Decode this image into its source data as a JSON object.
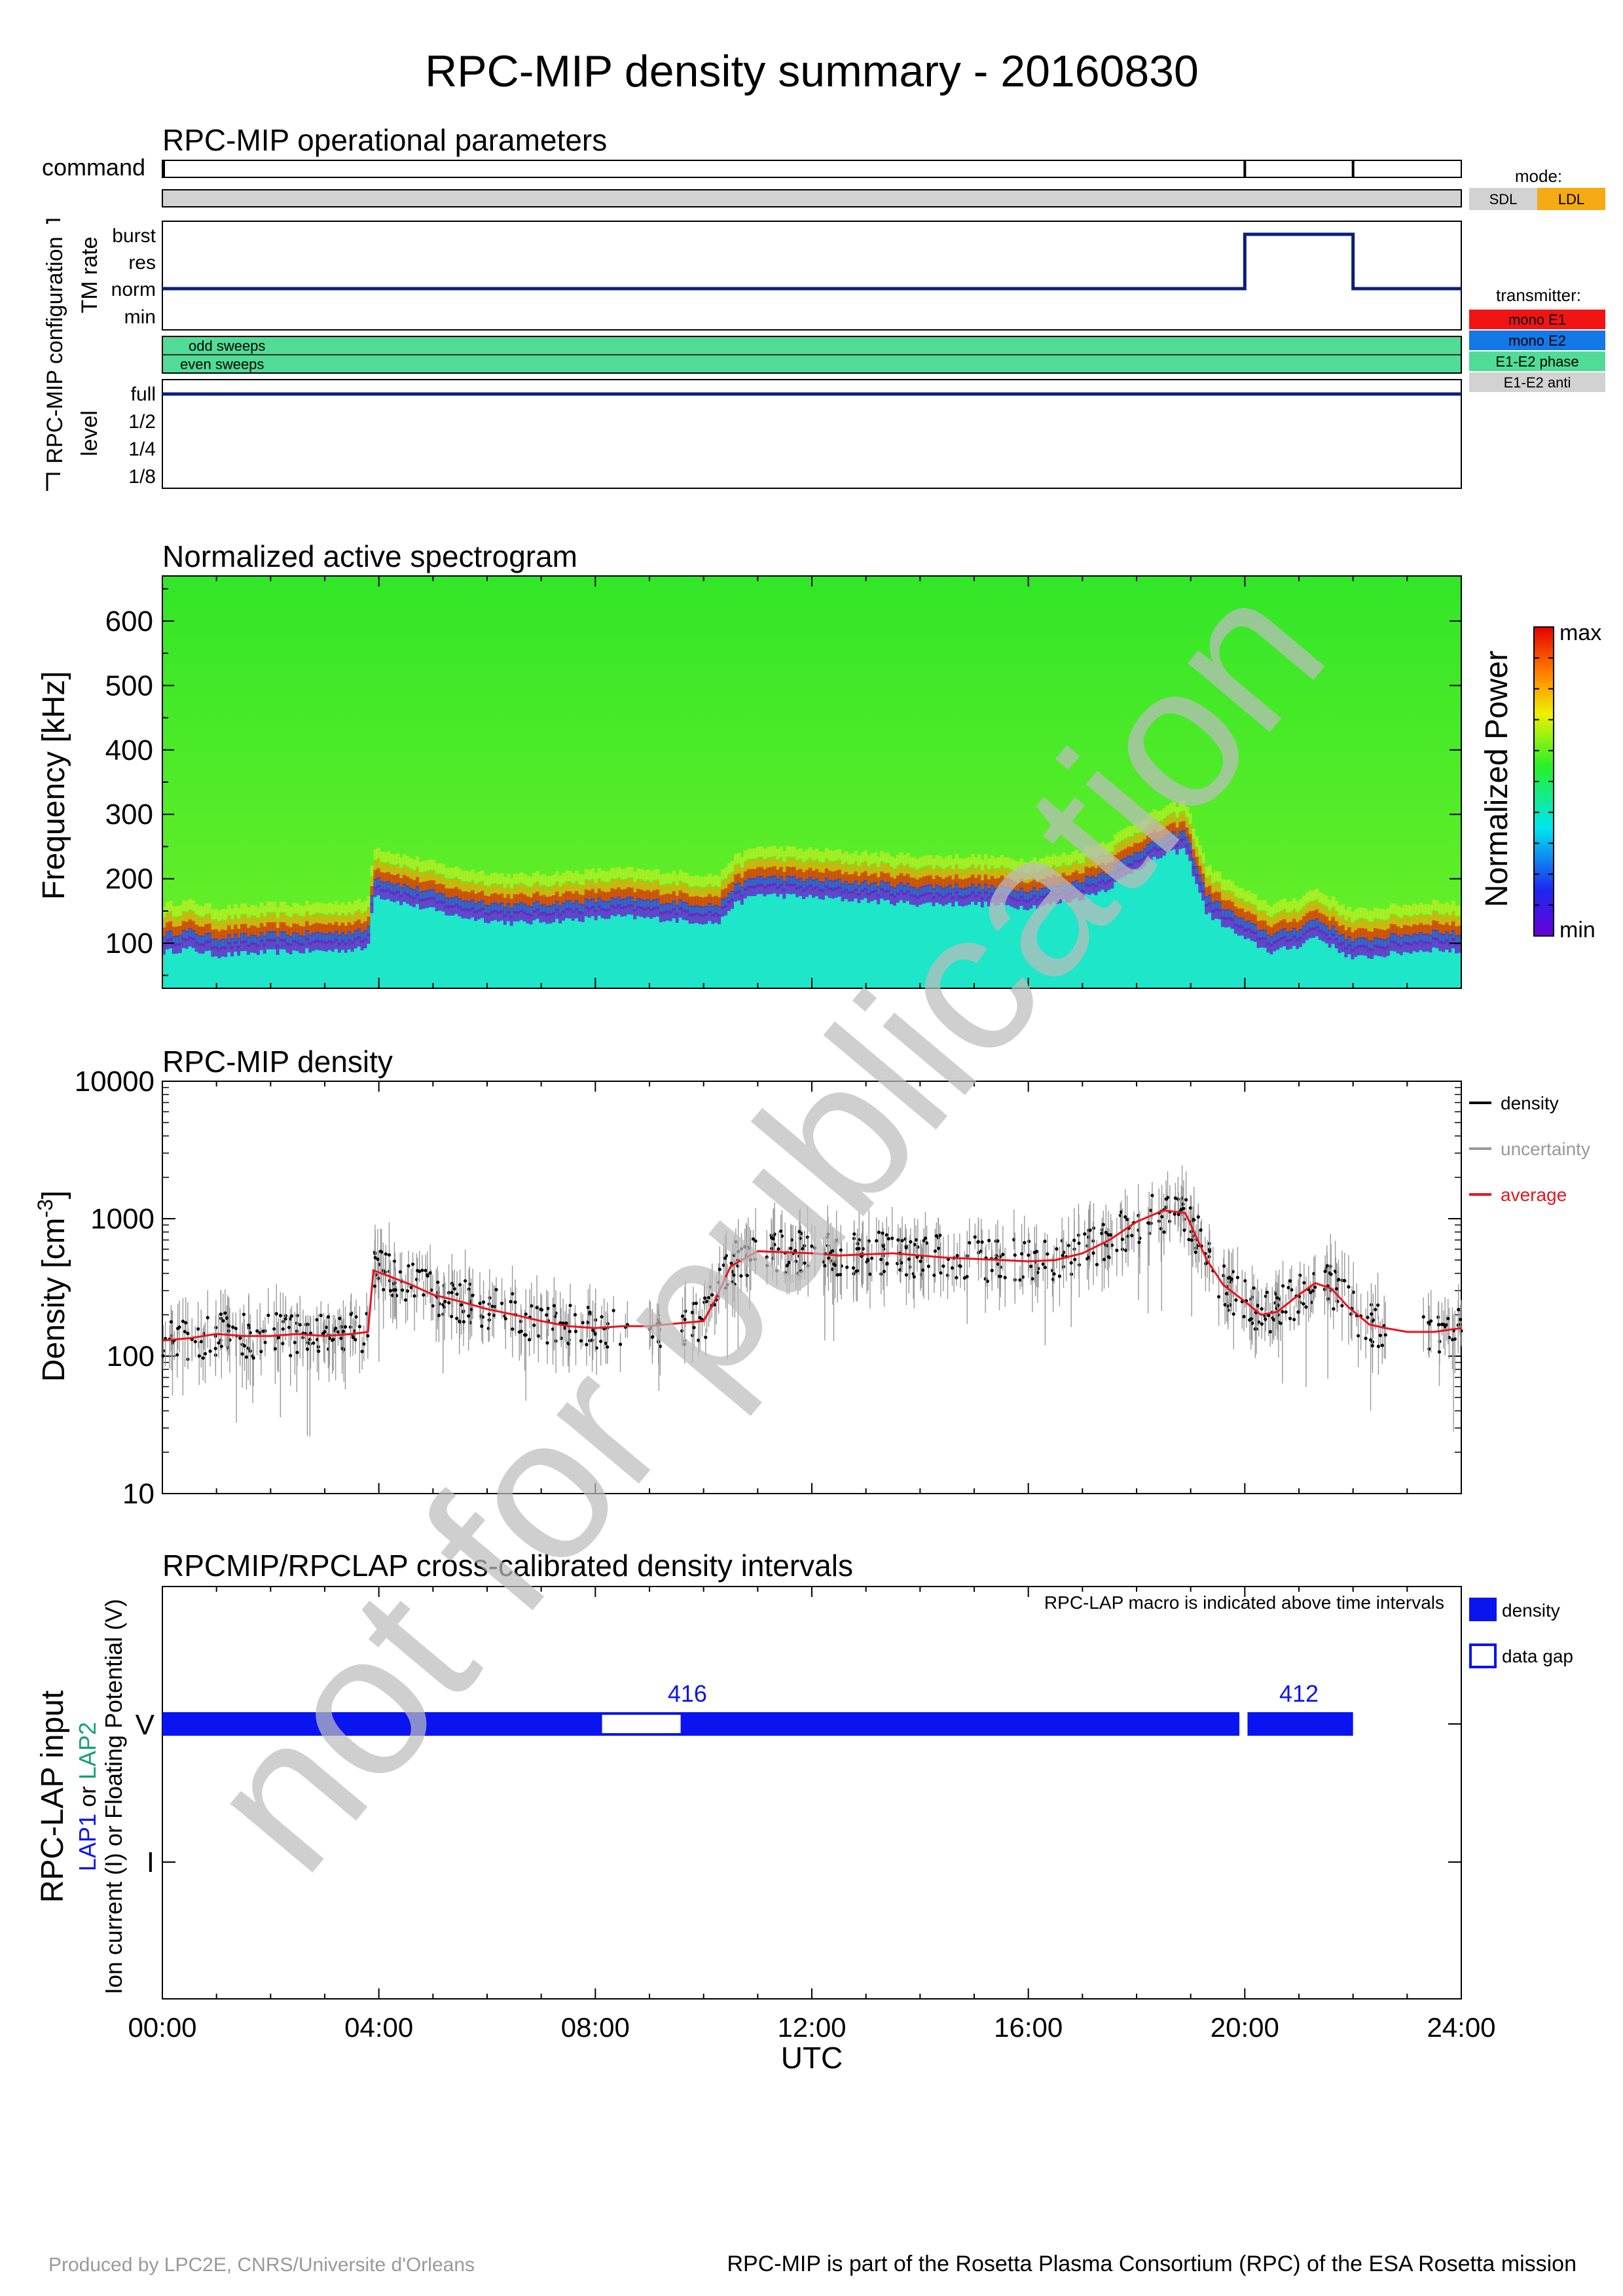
{
  "title": "RPC-MIP density summary - 20160830",
  "footer": {
    "left": "Produced by LPC2E, CNRS/Universite d'Orleans",
    "right": "RPC-MIP is part of the Rosetta Plasma Consortium (RPC) of the ESA Rosetta mission"
  },
  "watermark": "not for publication",
  "time_axis": {
    "label": "UTC",
    "ticks": [
      "00:00",
      "04:00",
      "08:00",
      "12:00",
      "16:00",
      "20:00",
      "24:00"
    ],
    "range_hours": [
      0,
      24
    ]
  },
  "colors": {
    "navy": "#0a1e7a",
    "density": "#000000",
    "uncertainty": "#999999",
    "average": "#e8141e",
    "lap_blue": "#0a14f0",
    "lap2_green": "#14a078",
    "gray_bar": "#d2d2d2",
    "sdl": "#d2d2d2",
    "ldl": "#f5aa14",
    "mono_e1": "#f01414",
    "mono_e2": "#1478e6",
    "e1e2_phase": "#50dc96",
    "e1e2_anti": "#d2d2d2"
  },
  "operational": {
    "title": "RPC-MIP operational parameters",
    "command_label": "command",
    "config_label": "RPC-MIP configuration",
    "tm_rate_label": "TM rate",
    "level_label": "level",
    "command_ticks_hours": [
      0.0,
      20.0,
      22.0
    ],
    "tm_levels": [
      "burst",
      "res",
      "norm",
      "min"
    ],
    "tm_rate_steps": [
      {
        "start": 0.0,
        "end": 20.0,
        "level": "norm"
      },
      {
        "start": 20.0,
        "end": 22.0,
        "level": "burst"
      },
      {
        "start": 22.0,
        "end": 24.0,
        "level": "norm"
      }
    ],
    "sweeps": [
      "odd sweeps",
      "even sweeps"
    ],
    "level_levels": [
      "full",
      "1/2",
      "1/4",
      "1/8"
    ],
    "level_value": "full",
    "mode_legend": {
      "title": "mode:",
      "items": [
        "SDL",
        "LDL"
      ]
    },
    "transmitter_legend": {
      "title": "transmitter:",
      "items": [
        "mono E1",
        "mono E2",
        "E1-E2 phase",
        "E1-E2 anti"
      ]
    }
  },
  "spectrogram": {
    "title": "Normalized active spectrogram",
    "ylabel": "Frequency [kHz]",
    "yticks": [
      "100",
      "200",
      "300",
      "400",
      "500",
      "600"
    ],
    "ylim": [
      30,
      670
    ],
    "colorbar_label": "Normalized Power",
    "colorbar_max": "max",
    "colorbar_min": "min"
  },
  "density": {
    "title": "RPC-MIP density",
    "ylabel": "Density [cm",
    "ylabel_sup": "-3",
    "ylabel_end": "]",
    "yticks": [
      "10",
      "100",
      "1000",
      "10000"
    ],
    "legend": [
      "density",
      "uncertainty",
      "average"
    ]
  },
  "crosscal": {
    "title": "RPCMIP/RPCLAP cross-calibrated density intervals",
    "note": "RPC-LAP macro is indicated above time intervals",
    "ylabel_main": "RPC-LAP input",
    "ylabel_lap1": "LAP1",
    "ylabel_or": " or ",
    "ylabel_lap2": "LAP2",
    "ylabel_line3": "Ion current (I) or Floating Potential (V)",
    "yticks": [
      "V",
      "I"
    ],
    "legend": [
      "density",
      "data gap"
    ],
    "macros": [
      {
        "label": "416",
        "hour": 9.7
      },
      {
        "label": "412",
        "hour": 21.0
      }
    ]
  },
  "chart_data": [
    {
      "type": "line",
      "title": "RPC-MIP operational parameters",
      "xlabel": "UTC",
      "ylabel": "TM rate",
      "x": [
        0,
        20,
        20,
        22,
        22,
        24
      ],
      "y": [
        "norm",
        "norm",
        "burst",
        "burst",
        "norm",
        "norm"
      ],
      "level_series": {
        "name": "level",
        "value": "full",
        "x_range": [
          0,
          24
        ]
      },
      "mode": "SDL",
      "sweeps": "E1-E2 phase"
    },
    {
      "type": "heatmap",
      "title": "Normalized active spectrogram",
      "ylabel": "Frequency [kHz]",
      "xlabel": "UTC",
      "ylim": [
        30,
        670
      ],
      "xlim": [
        0,
        24
      ],
      "ridge_x_hours": [
        0.0,
        0.5,
        1.0,
        2.0,
        3.0,
        3.8,
        3.9,
        4.5,
        5.5,
        6.5,
        7.5,
        8.5,
        9.5,
        10.3,
        10.5,
        11.0,
        12.0,
        13.0,
        14.0,
        15.0,
        16.0,
        16.5,
        17.0,
        17.5,
        18.0,
        18.5,
        18.9,
        19.3,
        20.0,
        20.5,
        21.0,
        21.3,
        21.7,
        22.0,
        22.5,
        23.0,
        23.5,
        24.0
      ],
      "ridge_kHz": [
        120,
        125,
        115,
        120,
        122,
        125,
        210,
        195,
        175,
        165,
        170,
        175,
        170,
        165,
        190,
        210,
        205,
        200,
        195,
        195,
        190,
        195,
        205,
        220,
        250,
        270,
        280,
        180,
        140,
        120,
        130,
        145,
        125,
        110,
        115,
        120,
        125,
        120
      ]
    },
    {
      "type": "scatter",
      "title": "RPC-MIP density",
      "ylabel": "Density [cm-3]",
      "xlabel": "UTC",
      "yscale": "log",
      "ylim": [
        10,
        10000
      ],
      "xlim": [
        0,
        24
      ],
      "series": [
        {
          "name": "average",
          "x": [
            0.0,
            0.5,
            1.0,
            1.5,
            2.0,
            2.5,
            3.0,
            3.5,
            3.8,
            3.9,
            4.2,
            4.6,
            5.0,
            5.5,
            6.0,
            6.5,
            7.0,
            7.5,
            8.0,
            8.5,
            9.0,
            9.3,
            10.0,
            10.2,
            10.5,
            11.0,
            11.5,
            12.0,
            12.5,
            13.0,
            13.5,
            14.0,
            14.5,
            15.0,
            15.5,
            16.0,
            16.5,
            17.0,
            17.5,
            18.0,
            18.5,
            18.9,
            19.3,
            19.6,
            20.0,
            20.3,
            20.6,
            21.0,
            21.3,
            21.6,
            21.9,
            22.3,
            22.6,
            23.0,
            23.5,
            24.0
          ],
          "y": [
            130,
            135,
            145,
            140,
            140,
            145,
            140,
            145,
            150,
            420,
            380,
            330,
            280,
            250,
            220,
            200,
            180,
            165,
            160,
            165,
            165,
            170,
            180,
            250,
            450,
            580,
            570,
            560,
            540,
            550,
            560,
            540,
            520,
            510,
            500,
            490,
            500,
            560,
            700,
            950,
            1150,
            1100,
            500,
            330,
            250,
            200,
            210,
            280,
            340,
            310,
            230,
            170,
            160,
            150,
            150,
            160
          ]
        },
        {
          "name": "density",
          "points": "scattered black dots around average with error bars (uncertainty)"
        }
      ]
    },
    {
      "type": "bar",
      "title": "RPCMIP/RPCLAP cross-calibrated density intervals",
      "xlabel": "UTC",
      "series": [
        {
          "name": "density",
          "intervals_hours": [
            [
              0.0,
              8.1
            ],
            [
              9.6,
              19.9
            ],
            [
              20.05,
              22.0
            ]
          ],
          "channel": "V"
        },
        {
          "name": "data gap",
          "intervals_hours": [
            [
              8.1,
              9.6
            ]
          ],
          "channel": "V"
        }
      ],
      "macros": [
        {
          "label": "416",
          "hour": 9.7
        },
        {
          "label": "412",
          "hour": 21.0
        }
      ]
    }
  ]
}
